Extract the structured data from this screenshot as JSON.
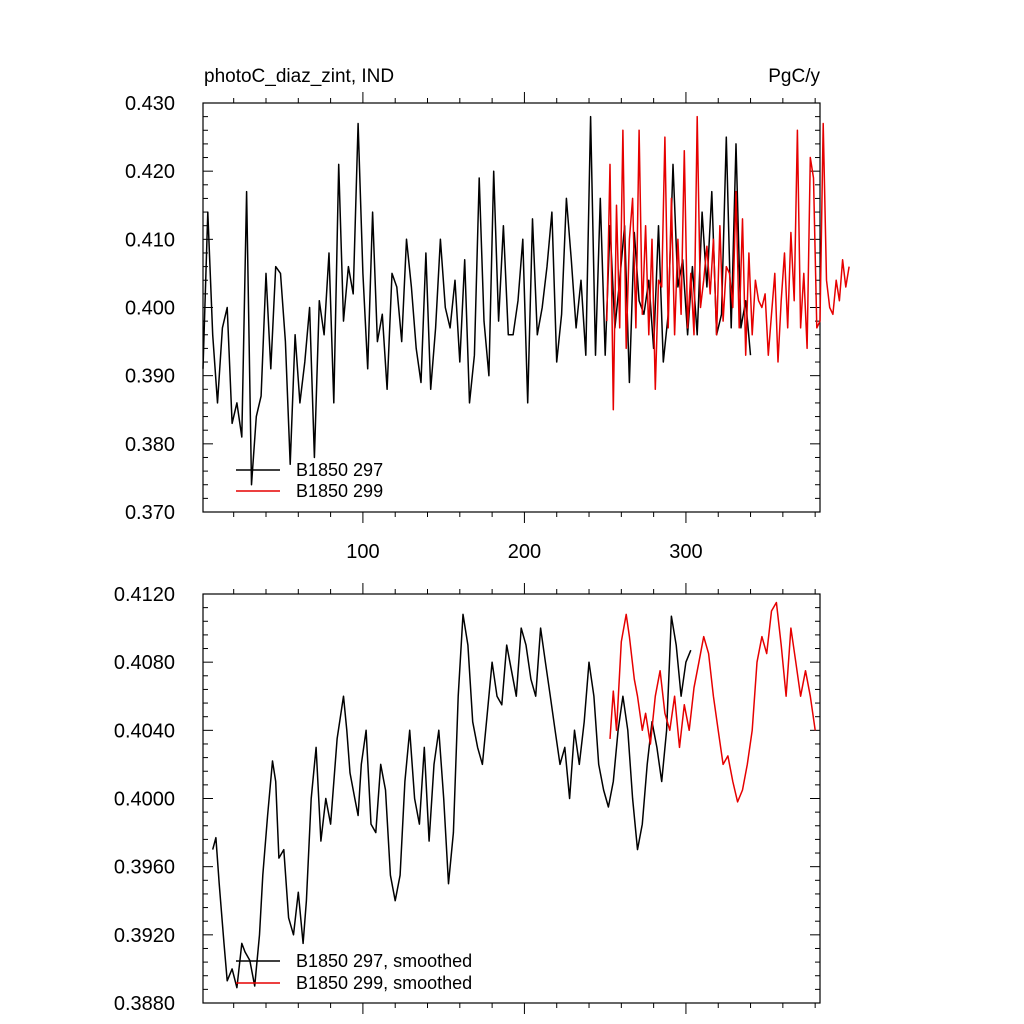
{
  "page": {
    "title": "photoC_diaz_zint, IND"
  },
  "chart_data": [
    {
      "id": "raw",
      "type": "line",
      "title": "photoC_diaz_zint, IND",
      "units_label": "PgC/y",
      "xlim": [
        1,
        383
      ],
      "ylim": [
        0.37,
        0.43
      ],
      "xticks": [
        100,
        200,
        300
      ],
      "xtick_labels": [
        "100",
        "200",
        "300"
      ],
      "yticks": [
        0.37,
        0.38,
        0.39,
        0.4,
        0.41,
        0.42,
        0.43
      ],
      "ytick_labels": [
        "0.370",
        "0.380",
        "0.390",
        "0.400",
        "0.410",
        "0.420",
        "0.430"
      ],
      "legend": [
        {
          "label": "B1850 297",
          "color": "#000000"
        },
        {
          "label": "B1850 299",
          "color": "#e60000"
        }
      ],
      "series": [
        {
          "name": "B1850 297",
          "color": "#000000",
          "x_start": 1,
          "x_step": 3,
          "values": [
            0.391,
            0.414,
            0.396,
            0.386,
            0.397,
            0.4,
            0.383,
            0.386,
            0.381,
            0.417,
            0.374,
            0.384,
            0.387,
            0.405,
            0.391,
            0.406,
            0.405,
            0.395,
            0.377,
            0.396,
            0.386,
            0.392,
            0.4,
            0.378,
            0.401,
            0.396,
            0.408,
            0.386,
            0.421,
            0.398,
            0.406,
            0.402,
            0.427,
            0.405,
            0.391,
            0.414,
            0.395,
            0.399,
            0.388,
            0.405,
            0.403,
            0.395,
            0.41,
            0.403,
            0.394,
            0.389,
            0.408,
            0.388,
            0.397,
            0.41,
            0.4,
            0.397,
            0.404,
            0.392,
            0.407,
            0.386,
            0.393,
            0.419,
            0.398,
            0.39,
            0.42,
            0.398,
            0.412,
            0.396,
            0.396,
            0.401,
            0.41,
            0.386,
            0.413,
            0.396,
            0.4,
            0.406,
            0.414,
            0.392,
            0.399,
            0.416,
            0.407,
            0.397,
            0.404,
            0.393,
            0.428,
            0.393,
            0.416,
            0.393,
            0.412,
            0.397,
            0.404,
            0.412,
            0.389,
            0.411,
            0.401,
            0.399,
            0.404,
            0.394,
            0.412,
            0.392,
            0.399,
            0.421,
            0.403,
            0.407,
            0.396,
            0.406,
            0.396,
            0.414,
            0.403,
            0.417,
            0.396,
            0.399,
            0.425,
            0.397,
            0.424,
            0.397,
            0.401,
            0.393
          ]
        },
        {
          "name": "B1850 299",
          "color": "#e60000",
          "x_start": 251,
          "x_step": 2,
          "values": [
            0.398,
            0.421,
            0.385,
            0.415,
            0.397,
            0.426,
            0.394,
            0.41,
            0.416,
            0.397,
            0.426,
            0.399,
            0.412,
            0.396,
            0.41,
            0.388,
            0.404,
            0.403,
            0.425,
            0.397,
            0.416,
            0.396,
            0.41,
            0.399,
            0.423,
            0.397,
            0.405,
            0.396,
            0.428,
            0.4,
            0.404,
            0.409,
            0.402,
            0.41,
            0.396,
            0.412,
            0.398,
            0.406,
            0.405,
            0.4,
            0.417,
            0.397,
            0.413,
            0.393,
            0.408,
            0.396,
            0.404,
            0.401,
            0.4,
            0.402,
            0.393,
            0.399,
            0.405,
            0.392,
            0.401,
            0.408,
            0.397,
            0.411,
            0.401,
            0.426,
            0.397,
            0.405,
            0.394,
            0.422,
            0.419,
            0.397,
            0.398,
            0.427,
            0.404,
            0.4,
            0.399,
            0.404,
            0.401,
            0.407,
            0.403,
            0.406
          ]
        }
      ]
    },
    {
      "id": "smoothed",
      "type": "line",
      "xlim": [
        1,
        383
      ],
      "ylim": [
        0.388,
        0.412
      ],
      "xticks": [
        100,
        200,
        300
      ],
      "yticks": [
        0.388,
        0.392,
        0.396,
        0.4,
        0.404,
        0.408,
        0.412
      ],
      "ytick_labels": [
        "0.3880",
        "0.3920",
        "0.3960",
        "0.4000",
        "0.4040",
        "0.4080",
        "0.4120"
      ],
      "legend": [
        {
          "label": "B1850 297, smoothed",
          "color": "#000000"
        },
        {
          "label": "B1850 299, smoothed",
          "color": "#e60000"
        }
      ],
      "series": [
        {
          "name": "B1850 297, smoothed",
          "color": "#000000",
          "x": [
            7,
            9,
            11,
            14,
            16,
            19,
            22,
            25,
            27,
            30,
            33,
            36,
            38,
            41,
            44,
            46,
            48,
            51,
            54,
            57,
            60,
            63,
            65,
            68,
            71,
            74,
            77,
            80,
            84,
            88,
            90,
            92,
            95,
            97,
            99,
            102,
            105,
            108,
            111,
            114,
            117,
            120,
            123,
            126,
            129,
            132,
            135,
            138,
            141,
            144,
            147,
            150,
            153,
            156,
            159,
            162,
            165,
            168,
            171,
            174,
            177,
            180,
            183,
            186,
            189,
            192,
            195,
            198,
            201,
            204,
            207,
            210,
            213,
            216,
            219,
            222,
            225,
            228,
            231,
            234,
            237,
            240,
            243,
            246,
            249,
            252,
            255,
            258,
            261,
            264,
            267,
            270,
            273,
            276,
            279,
            282,
            285,
            288,
            291,
            294,
            297,
            300,
            303
          ],
          "y": [
            0.397,
            0.3977,
            0.395,
            0.3915,
            0.3893,
            0.39,
            0.3889,
            0.3915,
            0.391,
            0.3905,
            0.389,
            0.392,
            0.3955,
            0.399,
            0.4022,
            0.401,
            0.3965,
            0.397,
            0.393,
            0.392,
            0.3945,
            0.3915,
            0.394,
            0.4,
            0.403,
            0.3975,
            0.4,
            0.3985,
            0.4035,
            0.406,
            0.404,
            0.4015,
            0.4,
            0.399,
            0.402,
            0.404,
            0.3985,
            0.398,
            0.402,
            0.4005,
            0.3955,
            0.394,
            0.3955,
            0.401,
            0.404,
            0.4,
            0.3985,
            0.403,
            0.3975,
            0.402,
            0.404,
            0.4,
            0.395,
            0.398,
            0.406,
            0.4108,
            0.409,
            0.4045,
            0.403,
            0.402,
            0.405,
            0.408,
            0.406,
            0.4055,
            0.409,
            0.4075,
            0.406,
            0.41,
            0.409,
            0.407,
            0.406,
            0.41,
            0.408,
            0.406,
            0.404,
            0.402,
            0.403,
            0.4,
            0.404,
            0.402,
            0.4045,
            0.408,
            0.406,
            0.402,
            0.4005,
            0.3995,
            0.401,
            0.404,
            0.406,
            0.404,
            0.4,
            0.397,
            0.3985,
            0.402,
            0.4045,
            0.403,
            0.401,
            0.404,
            0.4107,
            0.409,
            0.406,
            0.408,
            0.4087
          ]
        },
        {
          "name": "B1850 299, smoothed",
          "color": "#e60000",
          "x": [
            253,
            255,
            257,
            260,
            263,
            265,
            268,
            270,
            273,
            275,
            278,
            281,
            284,
            287,
            290,
            293,
            296,
            299,
            302,
            305,
            308,
            311,
            314,
            317,
            320,
            323,
            326,
            329,
            332,
            335,
            338,
            341,
            344,
            347,
            350,
            353,
            356,
            359,
            362,
            365,
            368,
            371,
            374,
            377,
            380
          ],
          "y": [
            0.4035,
            0.4063,
            0.404,
            0.4092,
            0.4108,
            0.4095,
            0.407,
            0.406,
            0.404,
            0.405,
            0.4032,
            0.406,
            0.4075,
            0.405,
            0.404,
            0.406,
            0.403,
            0.4055,
            0.404,
            0.4065,
            0.408,
            0.4095,
            0.4085,
            0.406,
            0.404,
            0.402,
            0.4025,
            0.401,
            0.3998,
            0.4005,
            0.402,
            0.404,
            0.408,
            0.4095,
            0.4085,
            0.411,
            0.4115,
            0.409,
            0.406,
            0.41,
            0.408,
            0.406,
            0.4075,
            0.406,
            0.404
          ]
        }
      ]
    }
  ]
}
